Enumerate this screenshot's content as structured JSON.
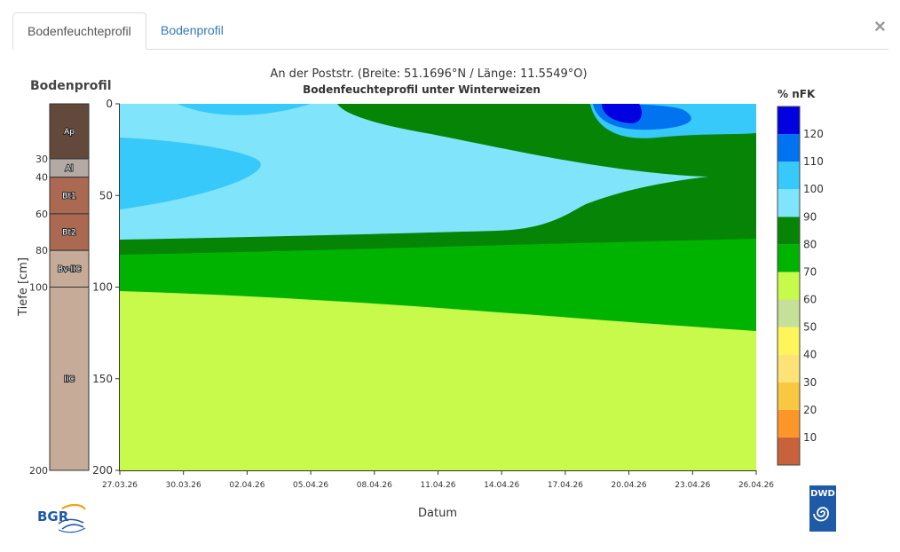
{
  "tabs": [
    {
      "label": "Bodenfeuchteprofil",
      "active": true
    },
    {
      "label": "Bodenprofil",
      "active": false
    }
  ],
  "close_icon": "close-icon",
  "soil_profile": {
    "title": "Bodenprofil",
    "layers": [
      {
        "name": "Ap",
        "top": 0,
        "bottom": 30,
        "color": "#62493b"
      },
      {
        "name": "Al",
        "top": 30,
        "bottom": 40,
        "color": "#b3aaa6"
      },
      {
        "name": "Bt1",
        "top": 40,
        "bottom": 60,
        "color": "#ab6952"
      },
      {
        "name": "Bt2",
        "top": 60,
        "bottom": 80,
        "color": "#ab6952"
      },
      {
        "name": "Bv-IIC",
        "top": 80,
        "bottom": 100,
        "color": "#c6ab98"
      },
      {
        "name": "IIC",
        "top": 100,
        "bottom": 200,
        "color": "#c6ab98"
      }
    ],
    "depth_labels": [
      "30",
      "40",
      "60",
      "80",
      "100",
      "200"
    ]
  },
  "chart_data": {
    "type": "heatmap",
    "title": "An der Poststr. (Breite: 51.1696°N / Länge: 11.5549°O)",
    "subtitle": "Bodenfeuchteprofil unter Winterweizen",
    "xlabel": "Datum",
    "ylabel": "Tiefe [cm]",
    "x_ticks": [
      "27.03.26",
      "30.03.26",
      "02.04.26",
      "05.04.26",
      "08.04.26",
      "11.04.26",
      "14.04.26",
      "17.04.26",
      "20.04.26",
      "23.04.26",
      "26.04.26"
    ],
    "y_ticks": [
      "0",
      "50",
      "100",
      "150",
      "200"
    ],
    "ylim": [
      0,
      200
    ],
    "y_inverted": true,
    "colorbar": {
      "title": "% nFK",
      "ticks": [
        "10",
        "20",
        "30",
        "40",
        "50",
        "60",
        "70",
        "80",
        "90",
        "100",
        "110",
        "120"
      ],
      "bands": [
        {
          "from": 0,
          "to": 10,
          "color": "#c7623a"
        },
        {
          "from": 10,
          "to": 20,
          "color": "#fd9628"
        },
        {
          "from": 20,
          "to": 30,
          "color": "#f8c840"
        },
        {
          "from": 30,
          "to": 40,
          "color": "#fde375"
        },
        {
          "from": 40,
          "to": 50,
          "color": "#fcf65a"
        },
        {
          "from": 50,
          "to": 60,
          "color": "#c6e098"
        },
        {
          "from": 60,
          "to": 70,
          "color": "#c8fa4b"
        },
        {
          "from": 70,
          "to": 80,
          "color": "#00b300"
        },
        {
          "from": 80,
          "to": 90,
          "color": "#068406"
        },
        {
          "from": 90,
          "to": 100,
          "color": "#80e5fa"
        },
        {
          "from": 100,
          "to": 110,
          "color": "#36c9f9"
        },
        {
          "from": 110,
          "to": 120,
          "color": "#0173f1"
        },
        {
          "from": 120,
          "to": 130,
          "color": "#0000e0"
        }
      ]
    }
  },
  "logos": {
    "left": "BGR",
    "right": "DWD"
  }
}
